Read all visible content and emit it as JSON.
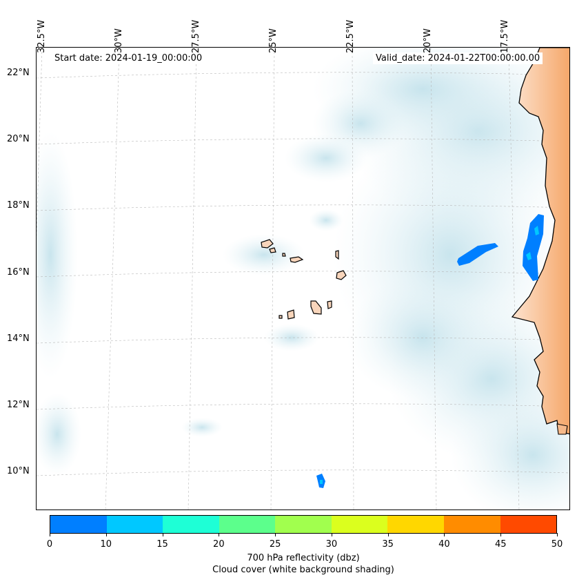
{
  "map": {
    "start_date": "Start date: 2024-01-19_00:00:00",
    "valid_date": "Valid_date: 2024-01-22T00:00:00.00",
    "longitude_labels": [
      "32.5°W",
      "30°W",
      "27.5°W",
      "25°W",
      "22.5°W",
      "20°W",
      "17.5°W"
    ],
    "latitude_labels": [
      "22°N",
      "20°N",
      "18°N",
      "16°N",
      "14°N",
      "12°N",
      "10°N"
    ],
    "land_color": "#f6b98a",
    "cloud_color": "#cfe8ef"
  },
  "colorbar": {
    "title_line1": "700 hPa reflectivity (dbz)",
    "title_line2": "Cloud cover (white background shading)",
    "ticks": [
      "0",
      "10",
      "15",
      "20",
      "25",
      "30",
      "35",
      "40",
      "45",
      "50"
    ],
    "colors": [
      "#007fff",
      "#00c8ff",
      "#1effd6",
      "#5cff8c",
      "#a1ff4e",
      "#dbff1e",
      "#ffd700",
      "#ff8c00",
      "#ff4a00"
    ]
  }
}
